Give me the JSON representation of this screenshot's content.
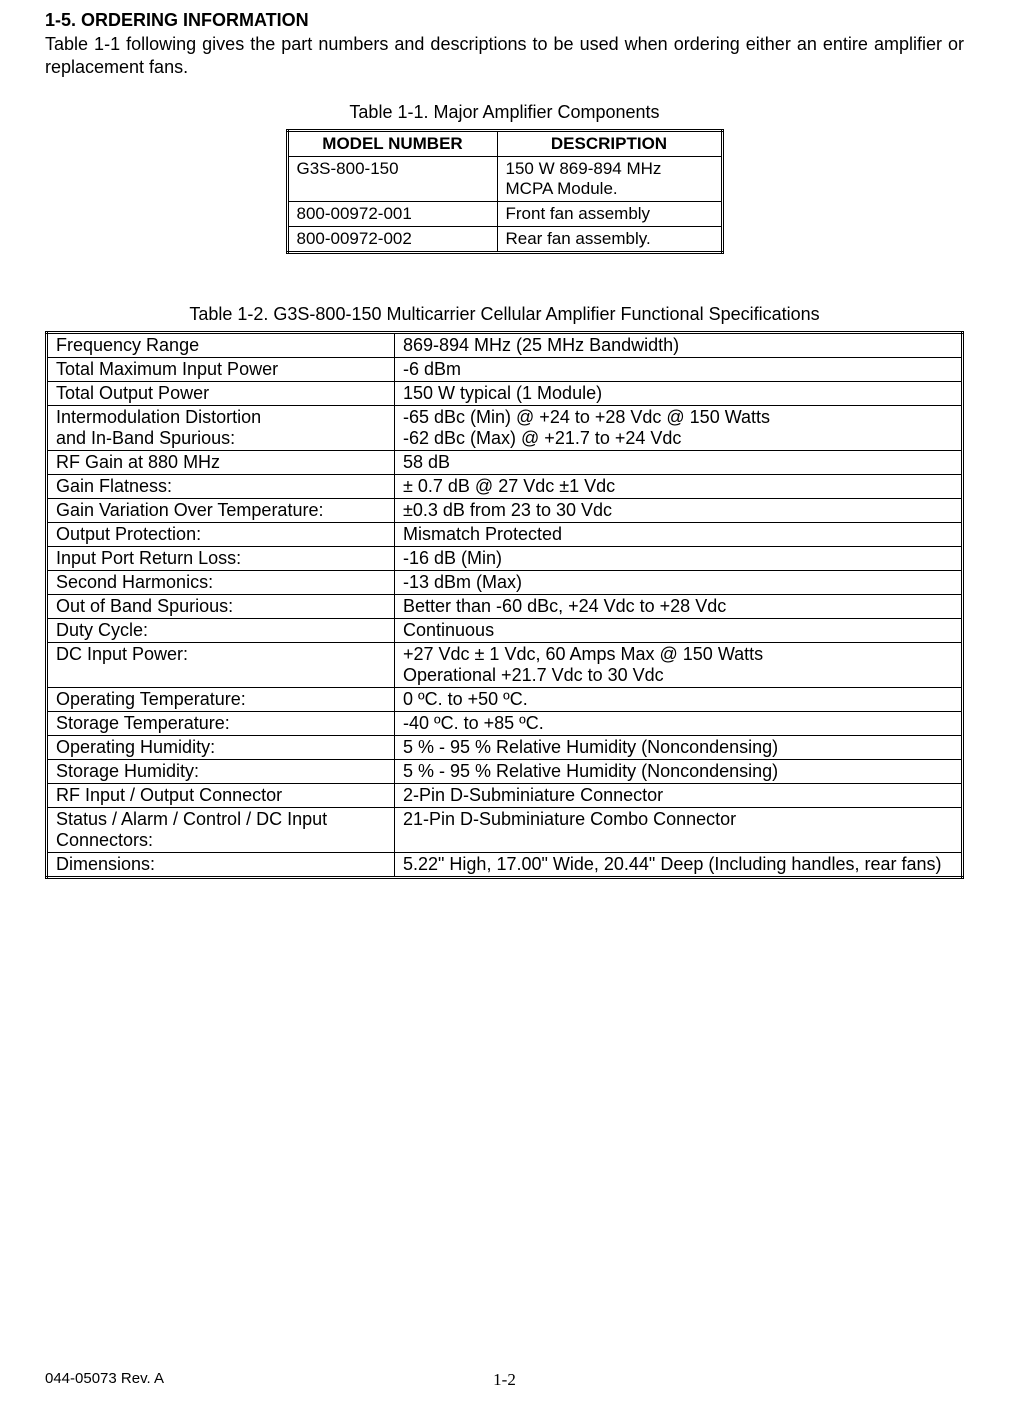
{
  "section": {
    "heading": "1-5.  ORDERING INFORMATION",
    "intro": "Table 1-1 following gives the part numbers and descriptions to be used when ordering either an entire amplifier or replacement fans."
  },
  "table1": {
    "caption": "Table 1-1.  Major Amplifier Components",
    "headers": [
      "MODEL NUMBER",
      "DESCRIPTION"
    ],
    "rows": [
      [
        "G3S-800-150",
        "150 W 869-894 MHz MCPA Module."
      ],
      [
        "800-00972-001",
        "Front fan assembly"
      ],
      [
        "800-00972-002",
        "Rear fan assembly."
      ]
    ]
  },
  "table2": {
    "caption": "Table 1-2.  G3S-800-150 Multicarrier Cellular Amplifier Functional Specifications",
    "rows": [
      [
        "Frequency Range",
        "869-894 MHz (25 MHz Bandwidth)"
      ],
      [
        "Total Maximum Input Power",
        "-6 dBm"
      ],
      [
        "Total Output Power",
        "150 W typical (1 Module)"
      ],
      [
        "Intermodulation Distortion\nand In-Band Spurious:",
        "-65 dBc (Min) @ +24 to +28 Vdc @ 150 Watts\n-62 dBc (Max) @ +21.7 to +24 Vdc"
      ],
      [
        "RF Gain at 880 MHz",
        "58 dB"
      ],
      [
        "Gain Flatness:",
        "± 0.7 dB @ 27 Vdc ±1 Vdc"
      ],
      [
        "Gain Variation Over Temperature:",
        "±0.3 dB from 23 to 30 Vdc"
      ],
      [
        "Output Protection:",
        "Mismatch Protected"
      ],
      [
        "Input Port Return Loss:",
        "-16 dB (Min)"
      ],
      [
        "Second Harmonics:",
        "-13 dBm (Max)"
      ],
      [
        "Out of Band Spurious:",
        "Better than -60 dBc, +24 Vdc to +28 Vdc"
      ],
      [
        "Duty Cycle:",
        "Continuous"
      ],
      [
        "DC Input Power:",
        "+27 Vdc ± 1 Vdc, 60 Amps Max @ 150 Watts\nOperational +21.7 Vdc to 30 Vdc"
      ],
      [
        "Operating Temperature:",
        "0 ºC. to +50 ºC."
      ],
      [
        "Storage Temperature:",
        "-40 ºC. to +85 ºC."
      ],
      [
        "Operating Humidity:",
        "5 % - 95 % Relative Humidity (Noncondensing)"
      ],
      [
        "Storage Humidity:",
        "5 % - 95 % Relative Humidity (Noncondensing)"
      ],
      [
        "RF Input / Output Connector",
        "2-Pin D-Subminiature Connector"
      ],
      [
        "Status / Alarm / Control / DC Input Connectors:",
        "21-Pin D-Subminiature Combo Connector"
      ],
      [
        "Dimensions:",
        "5.22\" High, 17.00\" Wide, 20.44\" Deep (Including handles, rear fans)"
      ]
    ]
  },
  "footer": {
    "left": "044-05073  Rev. A",
    "center": "1-2"
  }
}
